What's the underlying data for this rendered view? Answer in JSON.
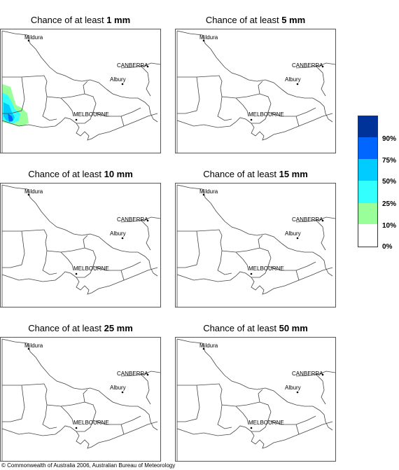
{
  "panels": [
    {
      "prefix": "Chance of at least ",
      "amount": "1 mm"
    },
    {
      "prefix": "Chance of at least ",
      "amount": "5 mm"
    },
    {
      "prefix": "Chance of at least ",
      "amount": "10 mm"
    },
    {
      "prefix": "Chance of at least ",
      "amount": "15 mm"
    },
    {
      "prefix": "Chance of at least ",
      "amount": "25 mm"
    },
    {
      "prefix": "Chance of at least ",
      "amount": "50 mm"
    }
  ],
  "map_labels": {
    "mildura": "Mildura",
    "canberra": "CANBERRA",
    "albury": "Albury",
    "melbourne": "MELBOURNE"
  },
  "legend": {
    "labels": [
      "90%",
      "75%",
      "50%",
      "25%",
      "10%",
      "0%"
    ],
    "colors": [
      "#003399",
      "#0066ff",
      "#00ccff",
      "#33ffff",
      "#99ff99",
      "#ffffff"
    ]
  },
  "footer": "© Commonwealth of Australia 2006, Australian Bureau of Meteorology"
}
